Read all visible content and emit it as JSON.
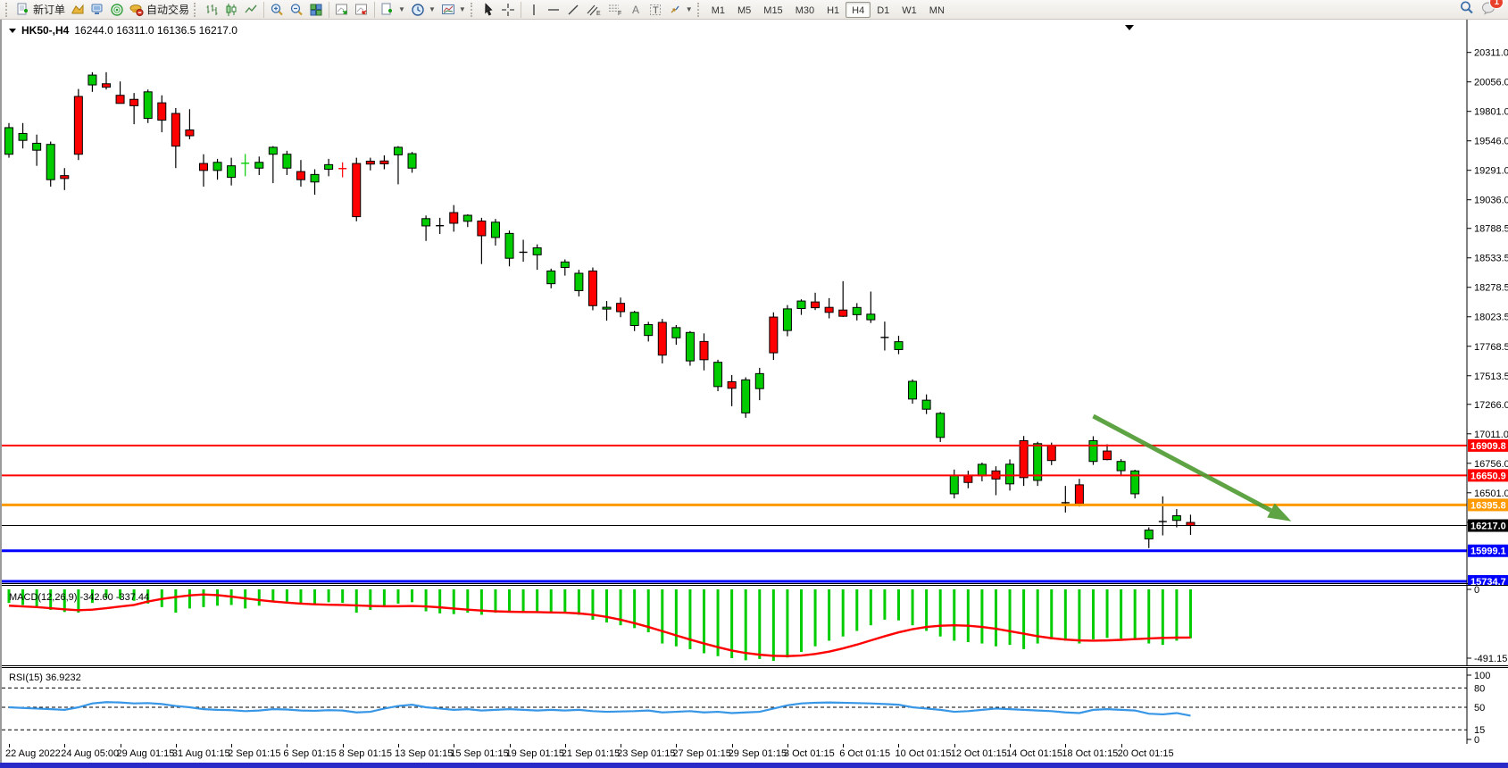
{
  "toolbar": {
    "new_order_label": "新订单",
    "autotrading_label": "自动交易",
    "glyphs": {
      "text_tool": "A",
      "textbox_tool": "T",
      "channel_tool": "E",
      "fibo_tool": "F"
    },
    "timeframes": [
      "M1",
      "M5",
      "M15",
      "M30",
      "H1",
      "H4",
      "D1",
      "W1",
      "MN"
    ],
    "active_timeframe": "H4",
    "chat_badge": "1"
  },
  "chart_title": {
    "symbol_period": "HK50-,H4",
    "ohlc_text": "16244.0 16311.0 16136.5 16217.0"
  },
  "colors": {
    "bull": "#00CC00",
    "bear": "#FF0000",
    "wick": "#000000",
    "macd_hist": "#00CC00",
    "macd_signal": "#FF0000",
    "rsi_line": "#3796E6",
    "arrow": "#4d9b30"
  },
  "chart_data": {
    "type": "candlestick",
    "symbol": "HK50-",
    "period": "H4",
    "ohlc_current": {
      "open": 16244.0,
      "high": 16311.0,
      "low": 16136.5,
      "close": 16217.0
    },
    "y_ticks": [
      "20311.0",
      "20056.0",
      "19801.0",
      "19546.0",
      "19291.0",
      "19036.0",
      "18788.5",
      "18533.5",
      "18278.5",
      "18023.5",
      "17768.5",
      "17513.5",
      "17266.0",
      "17011.0",
      "16756.0",
      "16501.0",
      "16246.0"
    ],
    "x_labels": [
      "22 Aug 2022",
      "24 Aug 05:00",
      "29 Aug 01:15",
      "31 Aug 01:15",
      "2 Sep 01:15",
      "6 Sep 01:15",
      "8 Sep 01:15",
      "13 Sep 01:15",
      "15 Sep 01:15",
      "19 Sep 01:15",
      "21 Sep 01:15",
      "23 Sep 01:15",
      "27 Sep 01:15",
      "29 Sep 01:15",
      "3 Oct 01:15",
      "6 Oct 01:15",
      "10 Oct 01:15",
      "12 Oct 01:15",
      "14 Oct 01:15",
      "18 Oct 01:15",
      "20 Oct 01:15"
    ],
    "bars_per_label": 4,
    "hlines": [
      {
        "price": 16909.8,
        "label": "16909.8",
        "color": "#FF0000",
        "thickness": 2
      },
      {
        "price": 16650.9,
        "label": "16650.9",
        "color": "#FF0000",
        "thickness": 2
      },
      {
        "price": 16395.8,
        "label": "16395.8",
        "color": "#FF9900",
        "thickness": 3
      },
      {
        "price": 16217.0,
        "label": "16217.0",
        "color": "#000000",
        "thickness": 1
      },
      {
        "price": 15999.1,
        "label": "15999.1",
        "color": "#0000FF",
        "thickness": 3
      },
      {
        "price": 15734.7,
        "label": "15734.7",
        "color": "#0000FF",
        "thickness": 3
      }
    ],
    "candles": [
      [
        19430,
        19700,
        19400,
        19660
      ],
      [
        19550,
        19700,
        19480,
        19610
      ],
      [
        19465,
        19600,
        19330,
        19525
      ],
      [
        19210,
        19540,
        19150,
        19515
      ],
      [
        19245,
        19310,
        19120,
        19220
      ],
      [
        19930,
        19995,
        19380,
        19430
      ],
      [
        20030,
        20140,
        19970,
        20115
      ],
      [
        20040,
        20140,
        19990,
        20010
      ],
      [
        19940,
        20060,
        19900,
        19870
      ],
      [
        19905,
        19960,
        19690,
        19850
      ],
      [
        19740,
        19990,
        19700,
        19970
      ],
      [
        19875,
        19940,
        19620,
        19725
      ],
      [
        19783,
        19830,
        19310,
        19500
      ],
      [
        19640,
        19820,
        19560,
        19590
      ],
      [
        19350,
        19430,
        19150,
        19290
      ],
      [
        19290,
        19390,
        19210,
        19360
      ],
      [
        19230,
        19400,
        19160,
        19330
      ],
      [
        19345,
        19432,
        19240,
        19352
      ],
      [
        19310,
        19410,
        19250,
        19360
      ],
      [
        19430,
        19500,
        19180,
        19490
      ],
      [
        19310,
        19460,
        19250,
        19430
      ],
      [
        19280,
        19380,
        19150,
        19210
      ],
      [
        19190,
        19300,
        19080,
        19255
      ],
      [
        19300,
        19390,
        19240,
        19340
      ],
      [
        19310,
        19360,
        19230,
        19306
      ],
      [
        19350,
        19400,
        18850,
        18890
      ],
      [
        19370,
        19400,
        19290,
        19345
      ],
      [
        19372,
        19420,
        19300,
        19347
      ],
      [
        19425,
        19500,
        19170,
        19490
      ],
      [
        19310,
        19450,
        19270,
        19435
      ],
      [
        18810,
        18900,
        18680,
        18873
      ],
      [
        18812,
        18880,
        18740,
        18812
      ],
      [
        18925,
        18990,
        18760,
        18833
      ],
      [
        18850,
        18910,
        18800,
        18902
      ],
      [
        18852,
        18880,
        18480,
        18725
      ],
      [
        18710,
        18870,
        18640,
        18842
      ],
      [
        18530,
        18770,
        18460,
        18745
      ],
      [
        18582,
        18690,
        18500,
        18582
      ],
      [
        18560,
        18650,
        18430,
        18620
      ],
      [
        18310,
        18440,
        18270,
        18420
      ],
      [
        18450,
        18520,
        18380,
        18498
      ],
      [
        18250,
        18430,
        18200,
        18400
      ],
      [
        18420,
        18450,
        18080,
        18120
      ],
      [
        18090,
        18160,
        17990,
        18106
      ],
      [
        18140,
        18190,
        18020,
        18068
      ],
      [
        17948,
        18075,
        17900,
        18062
      ],
      [
        17862,
        17980,
        17810,
        17956
      ],
      [
        17975,
        18005,
        17620,
        17692
      ],
      [
        17842,
        17952,
        17782,
        17930
      ],
      [
        17642,
        17900,
        17600,
        17888
      ],
      [
        17810,
        17880,
        17560,
        17652
      ],
      [
        17420,
        17652,
        17380,
        17630
      ],
      [
        17462,
        17520,
        17250,
        17405
      ],
      [
        17192,
        17500,
        17150,
        17478
      ],
      [
        17402,
        17582,
        17302,
        17532
      ],
      [
        18021,
        18062,
        17650,
        17712
      ],
      [
        17905,
        18125,
        17855,
        18092
      ],
      [
        18095,
        18175,
        18040,
        18160
      ],
      [
        18152,
        18232,
        18082,
        18102
      ],
      [
        18105,
        18185,
        18010,
        18062
      ],
      [
        18082,
        18332,
        18022,
        18028
      ],
      [
        18042,
        18142,
        17992,
        18104
      ],
      [
        17998,
        18242,
        17970,
        18046
      ],
      [
        17845,
        17982,
        17732,
        17845
      ],
      [
        17740,
        17860,
        17700,
        17808
      ],
      [
        17312,
        17482,
        17272,
        17465
      ],
      [
        17224,
        17352,
        17182,
        17302
      ],
      [
        16980,
        17200,
        16940,
        17188
      ],
      [
        16492,
        16702,
        16452,
        16654
      ],
      [
        16648,
        16692,
        16540,
        16590
      ],
      [
        16648,
        16762,
        16600,
        16747
      ],
      [
        16690,
        16730,
        16480,
        16620
      ],
      [
        16578,
        16790,
        16520,
        16748
      ],
      [
        16952,
        16992,
        16560,
        16632
      ],
      [
        16608,
        16942,
        16560,
        16926
      ],
      [
        16905,
        16935,
        16740,
        16780
      ],
      [
        16415,
        16560,
        16330,
        16415
      ],
      [
        16570,
        16622,
        16382,
        16405
      ],
      [
        16772,
        16990,
        16742,
        16952
      ],
      [
        16862,
        16920,
        16782,
        16788
      ],
      [
        16692,
        16792,
        16652,
        16772
      ],
      [
        16492,
        16700,
        16452,
        16690
      ],
      [
        16102,
        16202,
        16022,
        16178
      ],
      [
        16252,
        16470,
        16132,
        16252
      ],
      [
        16262,
        16360,
        16202,
        16302
      ],
      [
        16244,
        16311,
        16136.5,
        16217
      ]
    ],
    "arrow_annotation": {
      "from": {
        "bar": 78,
        "price": 17164
      },
      "to": {
        "bar": 91.8,
        "price": 16283
      },
      "color": "#4d9b30"
    }
  },
  "macd": {
    "name": "MACD(12,26,9)",
    "values_text": "-342.60 -337.44",
    "scale_labels": [
      "0",
      "-491.15"
    ],
    "scale_values": [
      0,
      -491.15
    ],
    "hist": [
      -90,
      -105,
      -120,
      -140,
      -155,
      -160,
      -90,
      -55,
      -60,
      -75,
      -95,
      -120,
      -160,
      -130,
      -120,
      -110,
      -105,
      -130,
      -110,
      -85,
      -80,
      -100,
      -95,
      -85,
      -90,
      -160,
      -140,
      -120,
      -95,
      -85,
      -150,
      -165,
      -170,
      -160,
      -175,
      -160,
      -150,
      -155,
      -150,
      -165,
      -155,
      -175,
      -210,
      -230,
      -250,
      -270,
      -300,
      -380,
      -400,
      -420,
      -450,
      -470,
      -485,
      -500,
      -490,
      -505,
      -480,
      -440,
      -400,
      -360,
      -330,
      -290,
      -250,
      -210,
      -215,
      -250,
      -290,
      -330,
      -360,
      -370,
      -380,
      -400,
      -390,
      -420,
      -380,
      -350,
      -360,
      -380,
      -350,
      -340,
      -345,
      -350,
      -380,
      -390,
      -360,
      -342.6
    ],
    "signal": [
      -110,
      -115,
      -120,
      -128,
      -136,
      -142,
      -138,
      -128,
      -116,
      -105,
      -80,
      -62,
      -48,
      -36,
      -30,
      -35,
      -45,
      -58,
      -70,
      -80,
      -88,
      -95,
      -100,
      -103,
      -105,
      -108,
      -112,
      -114,
      -114,
      -112,
      -115,
      -122,
      -130,
      -138,
      -145,
      -150,
      -153,
      -155,
      -156,
      -158,
      -160,
      -165,
      -175,
      -190,
      -210,
      -235,
      -262,
      -292,
      -322,
      -352,
      -380,
      -406,
      -430,
      -448,
      -460,
      -468,
      -470,
      -466,
      -455,
      -438,
      -415,
      -388,
      -358,
      -328,
      -300,
      -278,
      -262,
      -253,
      -250,
      -253,
      -262,
      -275,
      -292,
      -310,
      -328,
      -342,
      -352,
      -358,
      -360,
      -358,
      -354,
      -349,
      -344,
      -340,
      -338,
      -337.44
    ]
  },
  "rsi": {
    "name": "RSI(15)",
    "value_text": "36.9232",
    "scale_labels": [
      "100",
      "80",
      "50",
      "15",
      "0"
    ],
    "levels_dashed": [
      80,
      50,
      15
    ],
    "series": [
      50,
      49,
      48,
      47,
      46,
      50,
      56,
      58,
      57.5,
      56,
      56.5,
      55,
      52,
      50,
      47,
      46,
      45.5,
      44,
      45,
      47,
      46.5,
      45,
      44.5,
      45.5,
      45,
      42,
      43,
      48,
      52,
      54,
      50,
      48,
      46,
      47,
      45,
      46,
      47,
      46,
      45,
      46,
      45,
      46,
      44,
      43,
      43.5,
      44,
      45,
      42,
      43,
      44,
      42,
      43,
      41,
      42,
      43,
      48,
      53,
      56,
      57,
      57.5,
      57,
      56.5,
      56,
      55,
      54,
      50,
      48,
      46,
      43,
      44,
      46,
      48,
      47,
      46,
      45,
      44,
      42,
      41,
      46,
      47,
      46,
      45,
      40,
      39,
      41,
      36.92
    ]
  }
}
